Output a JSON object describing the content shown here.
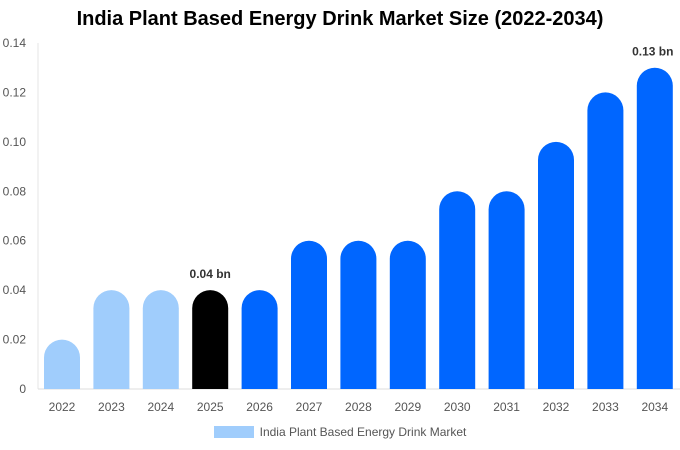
{
  "chart_data": {
    "type": "bar",
    "title": "India Plant Based Energy Drink Market Size (2022-2034)",
    "categories": [
      "2022",
      "2023",
      "2024",
      "2025",
      "2026",
      "2027",
      "2028",
      "2029",
      "2030",
      "2031",
      "2032",
      "2033",
      "2034"
    ],
    "series": [
      {
        "name": "India Plant Based Energy Drink Market",
        "values": [
          0.02,
          0.04,
          0.04,
          0.04,
          0.04,
          0.06,
          0.06,
          0.06,
          0.08,
          0.08,
          0.1,
          0.12,
          0.13
        ]
      }
    ],
    "ylim": [
      0,
      0.14
    ],
    "yticks": [
      "0",
      "0.02",
      "0.04",
      "0.06",
      "0.08",
      "0.10",
      "0.12",
      "0.14"
    ],
    "data_labels": [
      {
        "category": "2025",
        "text": "0.04 bn"
      },
      {
        "category": "2034",
        "text": "0.13 bn"
      }
    ],
    "bar_colors": {
      "historical": "#a0cdfc",
      "current": "#000000",
      "forecast": "#0066ff"
    },
    "grid": false,
    "legend_position": "bottom"
  }
}
